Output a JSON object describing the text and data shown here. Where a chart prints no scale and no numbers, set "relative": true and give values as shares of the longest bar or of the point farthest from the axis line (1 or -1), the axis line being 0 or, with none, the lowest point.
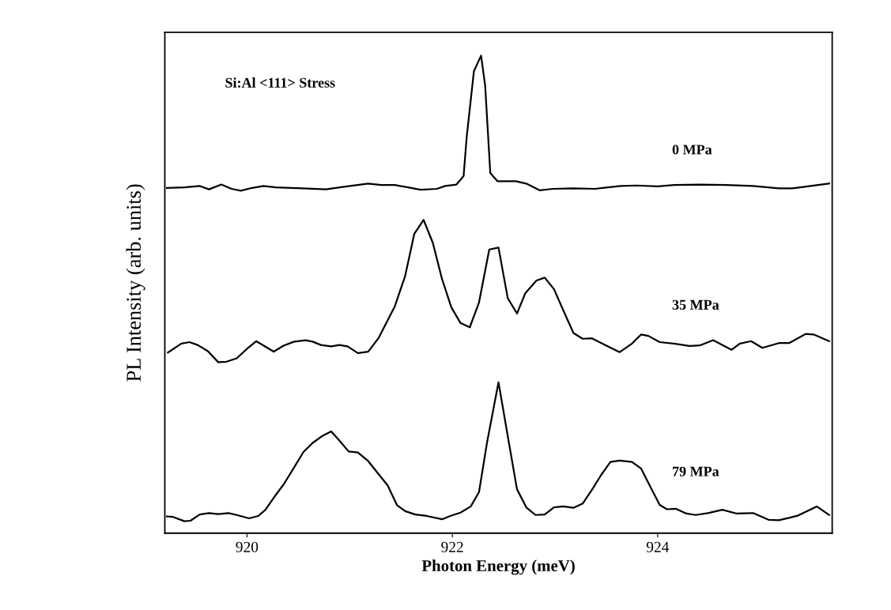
{
  "chart_data": {
    "type": "line",
    "xlabel": "Photon Energy (meV)",
    "ylabel": "PL Intensity (arb. units)",
    "relative": true,
    "xlim": [
      919.2,
      925.7
    ],
    "xticks": [
      920,
      922,
      924
    ],
    "grid": false,
    "legend": false,
    "marker": "none",
    "line_style": "solid",
    "annotations": [
      "Si:Al <111> Stress"
    ],
    "series": [
      {
        "name": "0 MPa",
        "color": "#000000",
        "x": [
          919.22,
          919.39,
          919.54,
          919.63,
          919.75,
          919.85,
          919.94,
          920.05,
          920.16,
          920.28,
          920.54,
          920.77,
          920.93,
          921.18,
          921.31,
          921.44,
          921.57,
          921.69,
          921.85,
          921.93,
          922.04,
          922.11,
          922.14,
          922.21,
          922.28,
          922.32,
          922.37,
          922.44,
          922.62,
          922.72,
          922.85,
          922.98,
          923.18,
          923.39,
          923.64,
          923.8,
          924.0,
          924.16,
          924.41,
          924.67,
          924.93,
          925.18,
          925.31,
          925.49,
          925.67
        ],
        "values": [
          0.723,
          0.724,
          0.727,
          0.72,
          0.73,
          0.721,
          0.717,
          0.723,
          0.727,
          0.724,
          0.722,
          0.72,
          0.725,
          0.732,
          0.729,
          0.729,
          0.724,
          0.719,
          0.721,
          0.727,
          0.73,
          0.748,
          0.829,
          0.967,
          1.0,
          0.937,
          0.754,
          0.737,
          0.737,
          0.732,
          0.718,
          0.721,
          0.722,
          0.721,
          0.727,
          0.728,
          0.726,
          0.729,
          0.73,
          0.729,
          0.727,
          0.722,
          0.722,
          0.727,
          0.732
        ]
      },
      {
        "name": "35 MPa",
        "color": "#000000",
        "x": [
          919.23,
          919.36,
          919.44,
          919.52,
          919.62,
          919.72,
          919.8,
          919.9,
          920.0,
          920.09,
          920.26,
          920.36,
          920.46,
          920.57,
          920.64,
          920.72,
          920.82,
          920.9,
          920.98,
          921.08,
          921.18,
          921.28,
          921.44,
          921.54,
          921.63,
          921.72,
          921.81,
          921.9,
          921.99,
          922.08,
          922.17,
          922.26,
          922.36,
          922.45,
          922.54,
          922.63,
          922.71,
          922.82,
          922.9,
          922.99,
          923.08,
          923.18,
          923.27,
          923.36,
          923.46,
          923.63,
          923.75,
          923.84,
          923.91,
          924.02,
          924.16,
          924.31,
          924.41,
          924.54,
          924.72,
          924.8,
          924.91,
          925.02,
          925.18,
          925.28,
          925.44,
          925.52,
          925.67
        ],
        "values": [
          0.378,
          0.397,
          0.4,
          0.394,
          0.381,
          0.358,
          0.359,
          0.366,
          0.386,
          0.402,
          0.38,
          0.393,
          0.401,
          0.404,
          0.401,
          0.394,
          0.391,
          0.394,
          0.391,
          0.377,
          0.38,
          0.408,
          0.475,
          0.538,
          0.627,
          0.656,
          0.608,
          0.532,
          0.473,
          0.44,
          0.431,
          0.483,
          0.594,
          0.598,
          0.492,
          0.46,
          0.502,
          0.529,
          0.535,
          0.511,
          0.467,
          0.419,
          0.407,
          0.408,
          0.397,
          0.379,
          0.397,
          0.416,
          0.413,
          0.4,
          0.397,
          0.392,
          0.393,
          0.404,
          0.384,
          0.397,
          0.402,
          0.388,
          0.398,
          0.398,
          0.417,
          0.416,
          0.402
        ]
      },
      {
        "name": "79 MPa",
        "color": "#000000",
        "x": [
          919.22,
          919.28,
          919.39,
          919.45,
          919.54,
          919.63,
          919.72,
          919.82,
          919.9,
          920.02,
          920.11,
          920.18,
          920.26,
          920.36,
          920.46,
          920.55,
          920.64,
          920.73,
          920.82,
          920.9,
          920.99,
          921.08,
          921.18,
          921.28,
          921.37,
          921.46,
          921.54,
          921.64,
          921.75,
          921.9,
          921.98,
          922.08,
          922.18,
          922.26,
          922.34,
          922.45,
          922.54,
          922.63,
          922.72,
          922.81,
          922.9,
          922.99,
          923.08,
          923.18,
          923.27,
          923.37,
          923.45,
          923.54,
          923.63,
          923.75,
          923.84,
          923.91,
          924.02,
          924.09,
          924.18,
          924.28,
          924.37,
          924.49,
          924.63,
          924.77,
          924.93,
          925.08,
          925.18,
          925.28,
          925.37,
          925.55,
          925.67
        ],
        "values": [
          0.035,
          0.034,
          0.025,
          0.026,
          0.039,
          0.042,
          0.04,
          0.042,
          0.038,
          0.031,
          0.036,
          0.049,
          0.074,
          0.103,
          0.138,
          0.17,
          0.189,
          0.203,
          0.213,
          0.194,
          0.171,
          0.169,
          0.151,
          0.124,
          0.1,
          0.059,
          0.046,
          0.039,
          0.036,
          0.029,
          0.036,
          0.043,
          0.056,
          0.086,
          0.192,
          0.316,
          0.203,
          0.092,
          0.054,
          0.038,
          0.039,
          0.054,
          0.056,
          0.053,
          0.062,
          0.094,
          0.122,
          0.149,
          0.152,
          0.149,
          0.135,
          0.105,
          0.059,
          0.05,
          0.051,
          0.041,
          0.038,
          0.042,
          0.049,
          0.041,
          0.042,
          0.028,
          0.027,
          0.032,
          0.037,
          0.056,
          0.038
        ]
      }
    ]
  }
}
